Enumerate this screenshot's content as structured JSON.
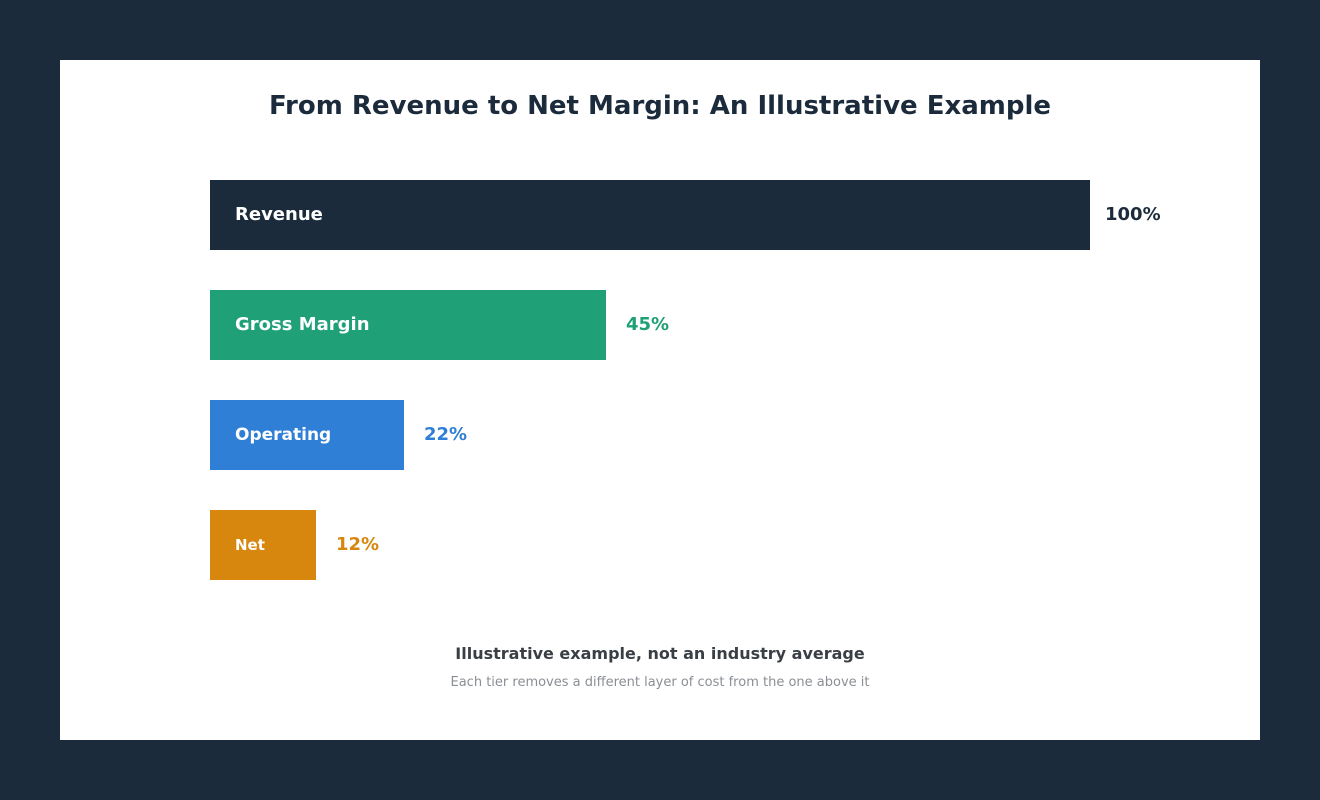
{
  "chart_data": {
    "type": "bar",
    "orientation": "horizontal",
    "title": "From Revenue to Net Margin: An Illustrative Example",
    "categories": [
      "Revenue",
      "Gross Margin",
      "Operating",
      "Net"
    ],
    "values": [
      100,
      45,
      22,
      12
    ],
    "value_labels": [
      "100%",
      "45%",
      "22%",
      "12%"
    ],
    "unit": "%",
    "xlim": [
      0,
      100
    ],
    "colors": [
      "#1b2b3c",
      "#1fa077",
      "#2f7fd6",
      "#d7860e"
    ],
    "grid": false,
    "legend": "none"
  },
  "footnote": {
    "title": "Illustrative example, not an industry average",
    "subtitle": "Each tier removes a different layer of cost from the one above it"
  }
}
